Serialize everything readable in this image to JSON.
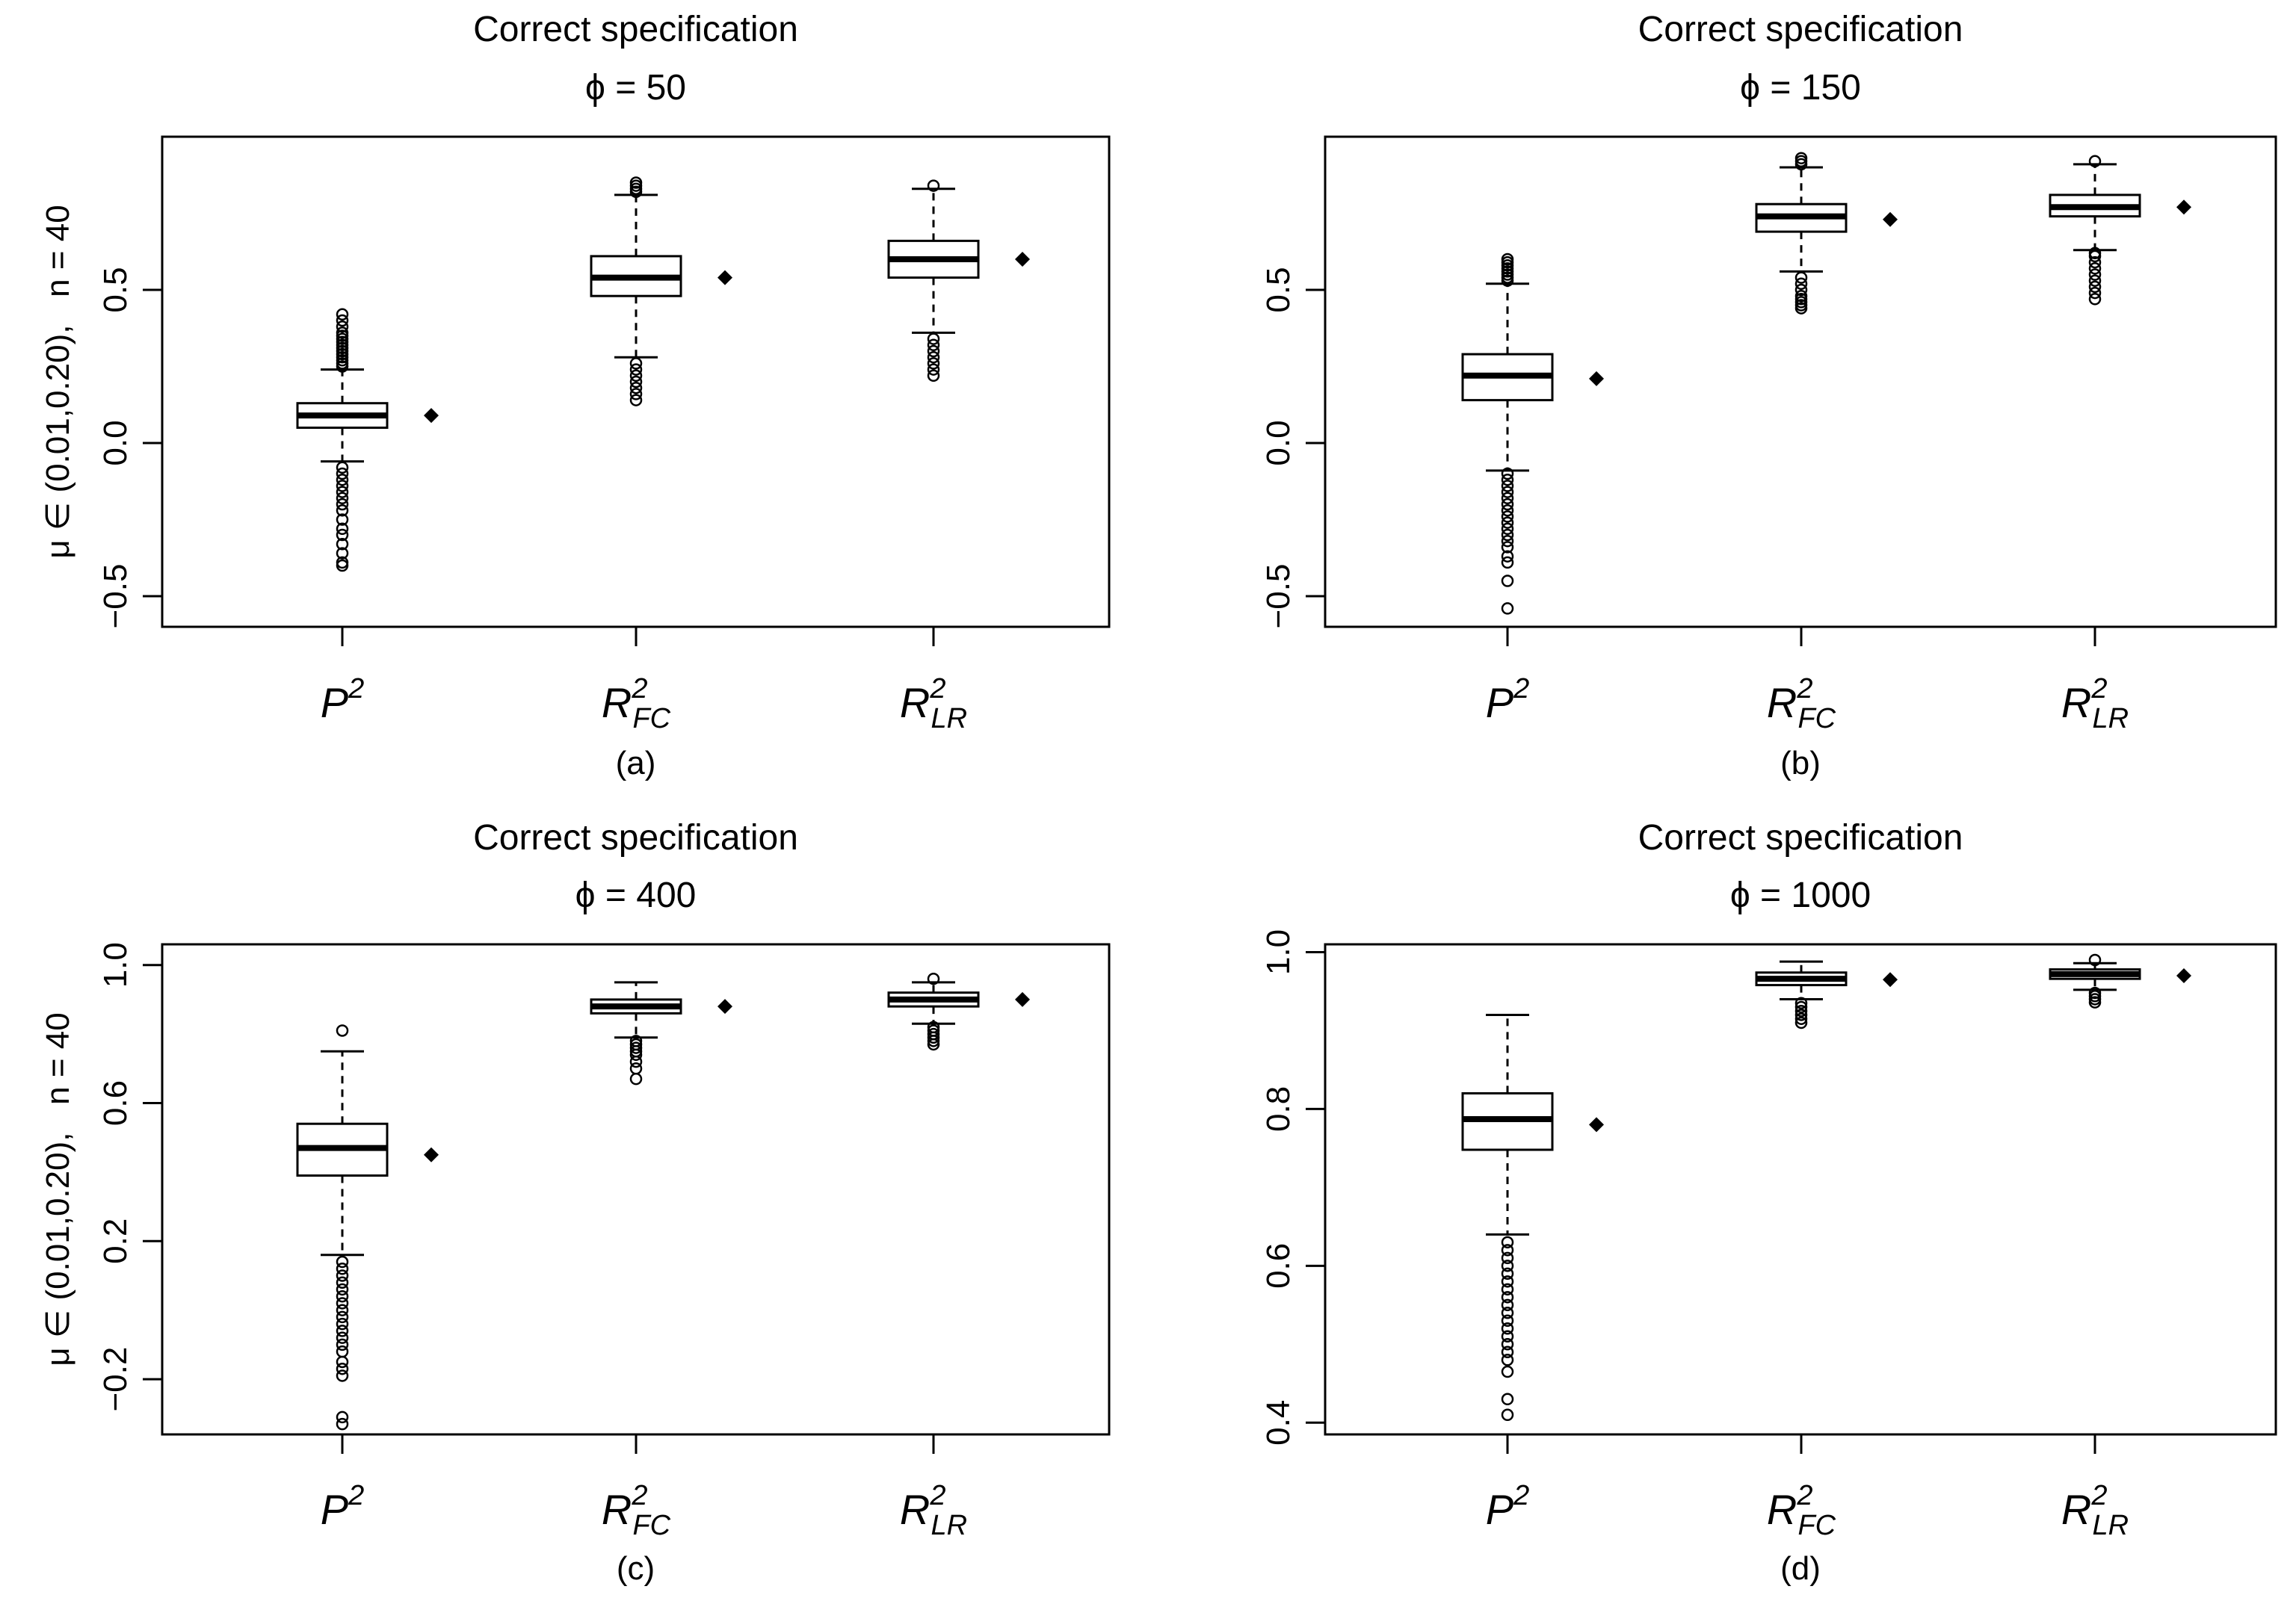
{
  "figure": {
    "category_labels": [
      {
        "base": "P",
        "sup": "2",
        "sub": ""
      },
      {
        "base": "R",
        "sup": "2",
        "sub": "FC"
      },
      {
        "base": "R",
        "sup": "2",
        "sub": "LR"
      }
    ]
  },
  "chart_data": [
    {
      "type": "box",
      "panel": "(a)",
      "title": "Correct specification",
      "subtitle": "ϕ = 50",
      "ylabel": "μ ∈ (0.01,0.20),   n = 40",
      "ylim": [
        -0.6,
        1.0
      ],
      "yticks": [
        -0.5,
        0.0,
        0.5
      ],
      "ytick_labels": [
        "−0.5",
        "0.0",
        "0.5"
      ],
      "categories": [
        "P2",
        "R2FC",
        "R2LR"
      ],
      "boxes": [
        {
          "lower_whisker": -0.06,
          "q1": 0.05,
          "median": 0.09,
          "q3": 0.13,
          "upper_whisker": 0.24,
          "outliers_high": [
            0.25,
            0.26,
            0.27,
            0.28,
            0.29,
            0.3,
            0.31,
            0.32,
            0.33,
            0.34,
            0.35,
            0.36,
            0.38,
            0.4,
            0.42
          ],
          "outliers_low": [
            -0.08,
            -0.1,
            -0.12,
            -0.14,
            -0.16,
            -0.18,
            -0.2,
            -0.22,
            -0.25,
            -0.28,
            -0.3,
            -0.33,
            -0.36,
            -0.39,
            -0.4
          ],
          "mean": 0.09
        },
        {
          "lower_whisker": 0.28,
          "q1": 0.48,
          "median": 0.54,
          "q3": 0.61,
          "upper_whisker": 0.81,
          "outliers_high": [
            0.82,
            0.83,
            0.84,
            0.85
          ],
          "outliers_low": [
            0.14,
            0.16,
            0.18,
            0.2,
            0.22,
            0.24,
            0.26
          ],
          "mean": 0.54
        },
        {
          "lower_whisker": 0.36,
          "q1": 0.54,
          "median": 0.6,
          "q3": 0.66,
          "upper_whisker": 0.83,
          "outliers_high": [
            0.84
          ],
          "outliers_low": [
            0.22,
            0.24,
            0.26,
            0.28,
            0.3,
            0.32,
            0.34
          ],
          "mean": 0.6
        }
      ]
    },
    {
      "type": "box",
      "panel": "(b)",
      "title": "Correct specification",
      "subtitle": "ϕ = 150",
      "ylabel": "",
      "ylim": [
        -0.6,
        1.0
      ],
      "yticks": [
        -0.5,
        0.0,
        0.5
      ],
      "ytick_labels": [
        "−0.5",
        "0.0",
        "0.5"
      ],
      "categories": [
        "P2",
        "R2FC",
        "R2LR"
      ],
      "boxes": [
        {
          "lower_whisker": -0.09,
          "q1": 0.14,
          "median": 0.22,
          "q3": 0.29,
          "upper_whisker": 0.52,
          "outliers_high": [
            0.53,
            0.54,
            0.55,
            0.56,
            0.57,
            0.58,
            0.59,
            0.6
          ],
          "outliers_low": [
            -0.1,
            -0.12,
            -0.14,
            -0.16,
            -0.18,
            -0.2,
            -0.22,
            -0.24,
            -0.26,
            -0.28,
            -0.3,
            -0.32,
            -0.34,
            -0.37,
            -0.39,
            -0.45,
            -0.54
          ],
          "mean": 0.21
        },
        {
          "lower_whisker": 0.56,
          "q1": 0.69,
          "median": 0.74,
          "q3": 0.78,
          "upper_whisker": 0.9,
          "outliers_high": [
            0.91,
            0.92,
            0.93
          ],
          "outliers_low": [
            0.44,
            0.45,
            0.46,
            0.47,
            0.48,
            0.5,
            0.52,
            0.54
          ],
          "mean": 0.73
        },
        {
          "lower_whisker": 0.63,
          "q1": 0.74,
          "median": 0.77,
          "q3": 0.81,
          "upper_whisker": 0.91,
          "outliers_high": [
            0.92
          ],
          "outliers_low": [
            0.47,
            0.49,
            0.51,
            0.53,
            0.55,
            0.57,
            0.59,
            0.61,
            0.62
          ],
          "mean": 0.77
        }
      ]
    },
    {
      "type": "box",
      "panel": "(c)",
      "title": "Correct specification",
      "subtitle": "ϕ = 400",
      "ylabel": "μ ∈ (0.01,0.20),   n = 40",
      "ylim": [
        -0.36,
        1.06
      ],
      "yticks": [
        -0.2,
        0.2,
        0.6,
        1.0
      ],
      "ytick_labels": [
        "−0.2",
        "0.2",
        "0.6",
        "1.0"
      ],
      "categories": [
        "P2",
        "R2FC",
        "R2LR"
      ],
      "boxes": [
        {
          "lower_whisker": 0.16,
          "q1": 0.39,
          "median": 0.47,
          "q3": 0.54,
          "upper_whisker": 0.75,
          "outliers_high": [
            0.81
          ],
          "outliers_low": [
            0.14,
            0.12,
            0.1,
            0.08,
            0.06,
            0.04,
            0.02,
            0.0,
            -0.02,
            -0.04,
            -0.06,
            -0.08,
            -0.1,
            -0.12,
            -0.15,
            -0.17,
            -0.19,
            -0.31,
            -0.33
          ],
          "mean": 0.45
        },
        {
          "lower_whisker": 0.79,
          "q1": 0.86,
          "median": 0.88,
          "q3": 0.9,
          "upper_whisker": 0.95,
          "outliers_high": [],
          "outliers_low": [
            0.67,
            0.7,
            0.72,
            0.74,
            0.75,
            0.76,
            0.77,
            0.78
          ],
          "mean": 0.88
        },
        {
          "lower_whisker": 0.83,
          "q1": 0.88,
          "median": 0.9,
          "q3": 0.92,
          "upper_whisker": 0.95,
          "outliers_high": [
            0.96
          ],
          "outliers_low": [
            0.77,
            0.78,
            0.79,
            0.8,
            0.81,
            0.82
          ],
          "mean": 0.9
        }
      ]
    },
    {
      "type": "box",
      "panel": "(d)",
      "title": "Correct specification",
      "subtitle": "ϕ = 1000",
      "ylabel": "",
      "ylim": [
        0.385,
        1.01
      ],
      "yticks": [
        0.4,
        0.6,
        0.8,
        1.0
      ],
      "ytick_labels": [
        "0.4",
        "0.6",
        "0.8",
        "1.0"
      ],
      "categories": [
        "P2",
        "R2FC",
        "R2LR"
      ],
      "boxes": [
        {
          "lower_whisker": 0.64,
          "q1": 0.748,
          "median": 0.787,
          "q3": 0.82,
          "upper_whisker": 0.92,
          "outliers_high": [],
          "outliers_low": [
            0.63,
            0.62,
            0.61,
            0.6,
            0.59,
            0.58,
            0.57,
            0.56,
            0.55,
            0.54,
            0.53,
            0.52,
            0.51,
            0.5,
            0.49,
            0.48,
            0.465,
            0.43,
            0.41
          ],
          "mean": 0.78
        },
        {
          "lower_whisker": 0.94,
          "q1": 0.958,
          "median": 0.966,
          "q3": 0.974,
          "upper_whisker": 0.988,
          "outliers_high": [],
          "outliers_low": [
            0.935,
            0.93,
            0.925,
            0.92,
            0.915,
            0.91
          ],
          "mean": 0.965
        },
        {
          "lower_whisker": 0.952,
          "q1": 0.966,
          "median": 0.972,
          "q3": 0.978,
          "upper_whisker": 0.986,
          "outliers_high": [
            0.99
          ],
          "outliers_low": [
            0.948,
            0.944,
            0.94,
            0.936
          ],
          "mean": 0.97
        }
      ]
    }
  ]
}
